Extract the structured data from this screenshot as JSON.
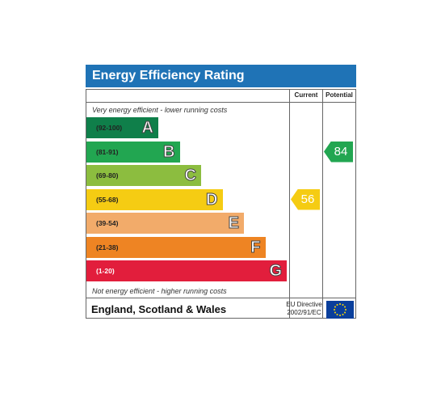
{
  "header": {
    "title": "Energy Efficiency Rating"
  },
  "columns": {
    "current": "Current",
    "potential": "Potential"
  },
  "notes": {
    "top": "Very energy efficient - lower running costs",
    "bottom": "Not energy efficient - higher running costs"
  },
  "footer": {
    "region": "England, Scotland & Wales",
    "directive_line1": "EU Directive",
    "directive_line2": "2002/91/EC"
  },
  "chart_data": {
    "type": "bar",
    "title": "Energy Efficiency Rating",
    "categories": [
      "A",
      "B",
      "C",
      "D",
      "E",
      "F",
      "G"
    ],
    "bands": [
      {
        "letter": "A",
        "range": "(92-100)",
        "color": "#0f7f4a"
      },
      {
        "letter": "B",
        "range": "(81-91)",
        "color": "#22a651"
      },
      {
        "letter": "C",
        "range": "(69-80)",
        "color": "#8cbd3f"
      },
      {
        "letter": "D",
        "range": "(55-68)",
        "color": "#f5cc13"
      },
      {
        "letter": "E",
        "range": "(39-54)",
        "color": "#f2ab6a"
      },
      {
        "letter": "F",
        "range": "(21-38)",
        "color": "#ee8423"
      },
      {
        "letter": "G",
        "range": "(1-20)",
        "color": "#e21e3c"
      }
    ],
    "current": {
      "value": 56,
      "band": "D",
      "color": "#f5cc13"
    },
    "potential": {
      "value": 84,
      "band": "B",
      "color": "#22a651"
    }
  }
}
